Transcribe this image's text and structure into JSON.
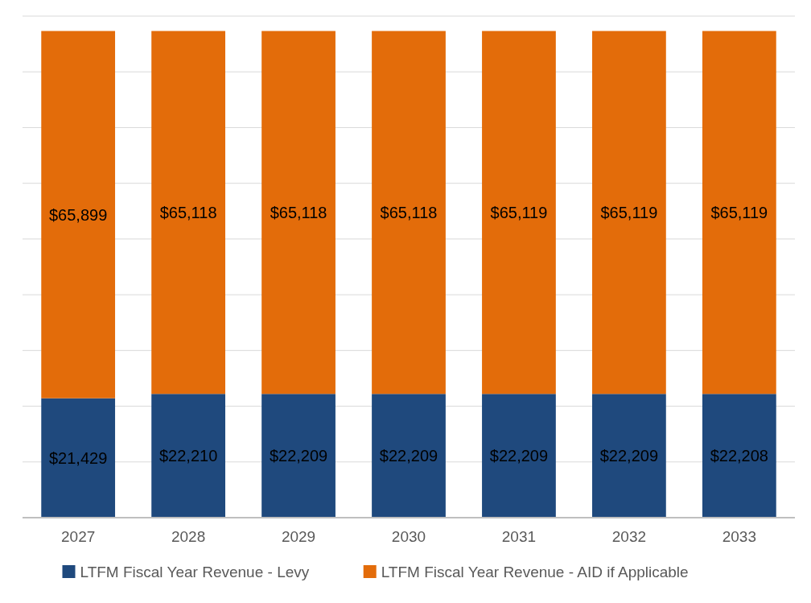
{
  "chart_data": {
    "type": "bar",
    "stacked": true,
    "categories": [
      "2027",
      "2028",
      "2029",
      "2030",
      "2031",
      "2032",
      "2033"
    ],
    "series": [
      {
        "name": "LTFM Fiscal Year Revenue - Levy",
        "color": "#1f497d",
        "values": [
          21429,
          22210,
          22209,
          22209,
          22209,
          22209,
          22208
        ],
        "value_labels": [
          "$21,429",
          "$22,210",
          "$22,209",
          "$22,209",
          "$22,209",
          "$22,209",
          "$22,208"
        ]
      },
      {
        "name": "LTFM Fiscal Year Revenue - AID if Applicable",
        "color": "#e36c0a",
        "values": [
          65899,
          65118,
          65118,
          65118,
          65119,
          65119,
          65119
        ],
        "value_labels": [
          "$65,899",
          "$65,118",
          "$65,118",
          "$65,118",
          "$65,119",
          "$65,119",
          "$65,119"
        ]
      }
    ],
    "ylim": [
      0,
      90000
    ],
    "yticks": [
      {
        "value": 0,
        "label": null
      },
      {
        "value": 10000,
        "label": null
      },
      {
        "value": 20000,
        "label": null
      },
      {
        "value": 30000,
        "label": null
      },
      {
        "value": 40000,
        "label": null
      },
      {
        "value": 50000,
        "label": null
      },
      {
        "value": 60000,
        "label": null
      },
      {
        "value": 70000,
        "label": null
      },
      {
        "value": 80000,
        "label": null
      },
      {
        "value": 90000,
        "label": null
      }
    ],
    "grid": "y",
    "tick_labels": "x",
    "legend": "bottom"
  }
}
